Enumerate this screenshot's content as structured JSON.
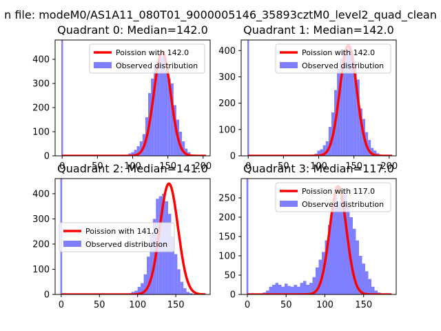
{
  "figure": {
    "suptitle": "n file: modeM0/AS1A11_080T01_9000005146_35893cztM0_level2_quad_clean"
  },
  "colors": {
    "poisson": "#ff0000",
    "observed": "#7f7fff",
    "axes": "#000000"
  },
  "chart_data": [
    {
      "type": "bar",
      "title": "Quadrant 0: Median=142.0",
      "xlim": [
        -10,
        210
      ],
      "ylim": [
        0,
        480
      ],
      "xticks": [
        0,
        50,
        100,
        150,
        200
      ],
      "yticks": [
        0,
        100,
        200,
        300,
        400
      ],
      "spike": {
        "x": 0,
        "value": 480
      },
      "bins": {
        "start": 90,
        "width": 4,
        "values": [
          5,
          10,
          15,
          25,
          40,
          60,
          90,
          160,
          260,
          320,
          380,
          390,
          410,
          420,
          360,
          320,
          300,
          210,
          150,
          100,
          60,
          30,
          15,
          5,
          2
        ]
      },
      "poisson": {
        "mean": 142.0,
        "peak": 430
      },
      "legend": {
        "location": "upper right",
        "line_label": "Poission with 142.0",
        "bar_label": "Observed distribution"
      }
    },
    {
      "type": "bar",
      "title": "Quadrant 1: Median=142.0",
      "xlim": [
        -10,
        210
      ],
      "ylim": [
        0,
        440
      ],
      "xticks": [
        0,
        50,
        100,
        150,
        200
      ],
      "yticks": [
        0,
        100,
        200,
        300,
        400
      ],
      "spike": {
        "x": 0,
        "value": 440
      },
      "bins": {
        "start": 90,
        "width": 4,
        "values": [
          5,
          8,
          20,
          25,
          40,
          55,
          110,
          165,
          250,
          330,
          370,
          400,
          395,
          420,
          390,
          360,
          290,
          180,
          140,
          90,
          60,
          30,
          20,
          10,
          5
        ]
      },
      "poisson": {
        "mean": 142.0,
        "peak": 420
      },
      "legend": {
        "location": "upper right",
        "line_label": "Poission with 142.0",
        "bar_label": "Observed distribution"
      }
    },
    {
      "type": "bar",
      "title": "Quadrant 2: Median=141.0",
      "xlim": [
        -8,
        195
      ],
      "ylim": [
        0,
        460
      ],
      "xticks": [
        0,
        50,
        100,
        150
      ],
      "yticks": [
        0,
        100,
        200,
        300,
        400
      ],
      "spike": {
        "x": 0,
        "value": 460
      },
      "bins": {
        "start": 88,
        "width": 4,
        "values": [
          5,
          10,
          15,
          30,
          45,
          80,
          150,
          240,
          300,
          380,
          390,
          400,
          370,
          320,
          230,
          160,
          100,
          50,
          25,
          10,
          5,
          2
        ]
      },
      "poisson": {
        "mean": 141.0,
        "peak": 440
      },
      "legend": {
        "location": "center left",
        "line_label": "Poission with 141.0",
        "bar_label": "Observed distribution"
      }
    },
    {
      "type": "bar",
      "title": "Quadrant 3: Median=117.0",
      "xlim": [
        -8,
        192
      ],
      "ylim": [
        0,
        300
      ],
      "xticks": [
        0,
        50,
        100,
        150
      ],
      "yticks": [
        0,
        50,
        100,
        150,
        200,
        250
      ],
      "spike": {
        "x": 0,
        "value": 300
      },
      "bins": {
        "start": 16,
        "width": 4,
        "values": [
          2,
          5,
          10,
          20,
          25,
          30,
          25,
          20,
          28,
          22,
          20,
          25,
          20,
          30,
          35,
          25,
          30,
          45,
          70,
          90,
          110,
          140,
          180,
          230,
          260,
          240,
          270,
          260,
          230,
          200,
          170,
          140,
          100,
          80,
          60,
          40,
          20,
          10,
          5,
          3
        ]
      },
      "poisson": {
        "mean": 117.0,
        "peak": 280
      },
      "legend": {
        "location": "upper right",
        "line_label": "Poission with 117.0",
        "bar_label": "Observed distribution"
      }
    }
  ]
}
